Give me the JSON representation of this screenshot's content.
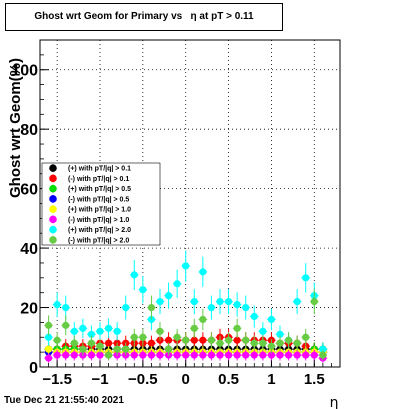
{
  "title": "Ghost wrt Geom for Primary vs   η at pT > 0.11",
  "footer": "Tue Dec 21 21:55:40 2021",
  "chart_data": {
    "type": "scatter",
    "title": "Ghost wrt Geom for Primary vs   η at pT > 0.11",
    "xlabel": "η",
    "ylabel": "Ghost wrt Geom(%)",
    "xlim": [
      -1.7,
      1.8
    ],
    "ylim": [
      0,
      110
    ],
    "grid": true,
    "legend_position": "center-left",
    "x_ticks": [
      {
        "value": -1.5,
        "label": "−1.5"
      },
      {
        "value": -1.0,
        "label": "−1"
      },
      {
        "value": -0.5,
        "label": "−0.5"
      },
      {
        "value": 0.0,
        "label": "0"
      },
      {
        "value": 0.5,
        "label": "0.5"
      },
      {
        "value": 1.0,
        "label": "1"
      },
      {
        "value": 1.5,
        "label": "1.5"
      }
    ],
    "y_ticks": [
      {
        "value": 0,
        "label": "0"
      },
      {
        "value": 20,
        "label": "20"
      },
      {
        "value": 40,
        "label": "40"
      },
      {
        "value": 60,
        "label": "60"
      },
      {
        "value": 80,
        "label": "80"
      },
      {
        "value": 100,
        "label": "100"
      }
    ],
    "x": [
      -1.6,
      -1.5,
      -1.4,
      -1.3,
      -1.2,
      -1.1,
      -1.0,
      -0.9,
      -0.8,
      -0.7,
      -0.6,
      -0.5,
      -0.4,
      -0.3,
      -0.2,
      -0.1,
      0.0,
      0.1,
      0.2,
      0.3,
      0.4,
      0.5,
      0.6,
      0.7,
      0.8,
      0.9,
      1.0,
      1.1,
      1.2,
      1.3,
      1.4,
      1.5,
      1.6
    ],
    "series": [
      {
        "name": "(+) with pT/|q| > 0.1",
        "color": "#000000",
        "values": [
          6,
          6,
          6,
          6,
          6,
          6,
          6,
          6,
          6,
          6,
          6,
          6,
          6,
          6,
          6,
          6,
          6,
          6,
          6,
          6,
          6,
          6,
          6,
          6,
          6,
          6,
          6,
          6,
          6,
          6,
          6,
          6,
          6
        ]
      },
      {
        "name": "(-) with pT/|q| > 0.1",
        "color": "#ff0000",
        "values": [
          5,
          6,
          7,
          7,
          7,
          7,
          8,
          8,
          8,
          8,
          8,
          8,
          8,
          9,
          9,
          9,
          9,
          9,
          9,
          9,
          10,
          10,
          9,
          9,
          9,
          9,
          9,
          8,
          8,
          8,
          7,
          6,
          5
        ]
      },
      {
        "name": "(+) with pT/|q| > 0.5",
        "color": "#00dd00",
        "values": [
          6,
          6,
          6,
          6,
          5,
          5,
          5,
          5,
          5,
          5,
          5,
          5,
          5,
          5,
          5,
          5,
          5,
          5,
          5,
          5,
          5,
          5,
          5,
          5,
          5,
          5,
          5,
          5,
          5,
          5,
          5,
          6,
          6
        ]
      },
      {
        "name": "(-) with pT/|q| > 0.5",
        "color": "#0000ff",
        "values": [
          5,
          5,
          5,
          5,
          5,
          5,
          5,
          5,
          5,
          5,
          5,
          5,
          5,
          5,
          5,
          5,
          5,
          5,
          5,
          5,
          5,
          5,
          5,
          5,
          5,
          5,
          5,
          5,
          5,
          5,
          5,
          5,
          5
        ]
      },
      {
        "name": "(+) with pT/|q| > 1.0",
        "color": "#ffff00",
        "values": [
          6,
          5,
          5,
          5,
          5,
          5,
          5,
          5,
          5,
          5,
          5,
          5,
          5,
          5,
          5,
          5,
          5,
          5,
          5,
          5,
          5,
          5,
          5,
          5,
          5,
          5,
          5,
          5,
          5,
          5,
          5,
          5,
          5
        ]
      },
      {
        "name": "(-) with pT/|q| > 1.0",
        "color": "#ff00ff",
        "values": [
          3,
          4,
          4,
          4,
          4,
          4,
          4,
          4,
          4,
          4,
          4,
          4,
          4,
          4,
          4,
          4,
          4,
          4,
          4,
          4,
          4,
          4,
          4,
          4,
          4,
          4,
          4,
          4,
          4,
          4,
          4,
          4,
          3
        ]
      },
      {
        "name": "(+) with pT/|q| > 2.0",
        "color": "#00ffff",
        "values": [
          10,
          21,
          20,
          12,
          13,
          11,
          12,
          13,
          12,
          20,
          31,
          26,
          16,
          22,
          24,
          28,
          34,
          22,
          32,
          20,
          22,
          22,
          21,
          20,
          17,
          12,
          16,
          11,
          9,
          22,
          30,
          24,
          6
        ]
      },
      {
        "name": "(-) with pT/|q| > 2.0",
        "color": "#66cc44",
        "values": [
          14,
          9,
          14,
          8,
          6,
          8,
          7,
          4,
          6,
          6,
          10,
          10,
          20,
          12,
          6,
          10,
          9,
          13,
          16,
          9,
          8,
          9,
          13,
          9,
          8,
          8,
          7,
          8,
          9,
          8,
          10,
          22,
          4
        ]
      }
    ]
  }
}
